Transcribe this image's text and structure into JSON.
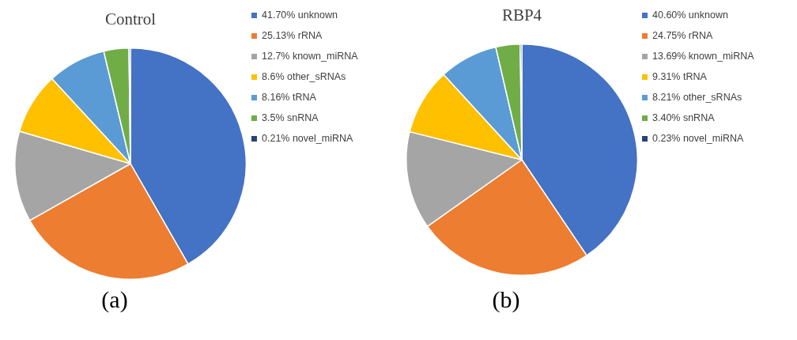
{
  "chart_data": [
    {
      "type": "pie",
      "title": "Control",
      "categories": [
        "unknown",
        "rRNA",
        "known_miRNA",
        "other_sRNAs",
        "tRNA",
        "snRNA",
        "novel_miRNA"
      ],
      "values": [
        41.7,
        25.13,
        12.7,
        8.6,
        8.16,
        3.5,
        0.21
      ],
      "value_labels": [
        "41.70%",
        "25.13%",
        "12.7%",
        "8.6%",
        "8.16%",
        "3.5%",
        "0.21%"
      ],
      "colors": [
        "#4472c4",
        "#ed7d31",
        "#a5a5a5",
        "#ffc000",
        "#5b9bd5",
        "#70ad47",
        "#264478"
      ],
      "legend": "right",
      "annotations": [
        "(a)"
      ]
    },
    {
      "type": "pie",
      "title": "RBP4",
      "categories": [
        "unknown",
        "rRNA",
        "known_miRNA",
        "tRNA",
        "other_sRNAs",
        "snRNA",
        "novel_miRNA"
      ],
      "values": [
        40.6,
        24.75,
        13.69,
        9.31,
        8.21,
        3.4,
        0.23
      ],
      "value_labels": [
        "40.60%",
        "24.75%",
        "13.69%",
        "9.31%",
        "8.21%",
        "3.40%",
        "0.23%"
      ],
      "colors": [
        "#4472c4",
        "#ed7d31",
        "#a5a5a5",
        "#ffc000",
        "#5b9bd5",
        "#70ad47",
        "#264478"
      ],
      "legend": "right",
      "annotations": [
        "(b)"
      ]
    }
  ]
}
